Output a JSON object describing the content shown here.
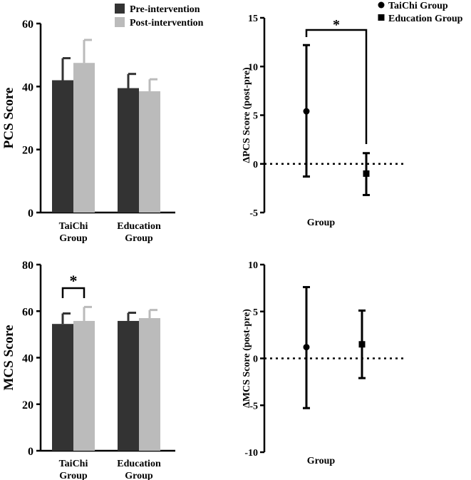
{
  "chart_data": [
    {
      "id": "pcs_bar",
      "type": "bar",
      "ylabel": "PCS Score",
      "ylim": [
        0,
        60
      ],
      "yticks": [
        "0",
        "20",
        "40",
        "60"
      ],
      "categories": [
        {
          "line1": "TaiChi",
          "line2": "Group"
        },
        {
          "line1": "Education",
          "line2": "Group"
        }
      ],
      "series": [
        {
          "name": "Pre-intervention",
          "color": "#333333",
          "values": [
            42,
            39.5
          ],
          "error": [
            7,
            4.5
          ]
        },
        {
          "name": "Post-intervention",
          "color": "#bbbbbb",
          "values": [
            47.5,
            38.5
          ],
          "error": [
            7.3,
            3.8
          ]
        }
      ],
      "significance": []
    },
    {
      "id": "pcs_delta",
      "type": "scatter",
      "ylabel": "ΔPCS Score (post-pre)",
      "xlabel": "Group",
      "ylim": [
        -5,
        15
      ],
      "yticks": [
        "-5",
        "0",
        "5",
        "10",
        "15"
      ],
      "points": [
        {
          "group": "TaiChi Group",
          "marker": "circle",
          "mean": 5.4,
          "low": -1.3,
          "high": 12.2
        },
        {
          "group": "Education Group",
          "marker": "square",
          "mean": -1.0,
          "low": -3.2,
          "high": 1.1
        }
      ],
      "reference_line": 0,
      "significance": [
        {
          "label": "*"
        }
      ]
    },
    {
      "id": "mcs_bar",
      "type": "bar",
      "ylabel": "MCS Score",
      "ylim": [
        0,
        80
      ],
      "yticks": [
        "0",
        "20",
        "40",
        "60",
        "80"
      ],
      "categories": [
        {
          "line1": "TaiChi",
          "line2": "Group"
        },
        {
          "line1": "Education",
          "line2": "Group"
        }
      ],
      "series": [
        {
          "name": "Pre-intervention",
          "color": "#333333",
          "values": [
            54.5,
            55.8
          ],
          "error": [
            4.5,
            3.5
          ]
        },
        {
          "name": "Post-intervention",
          "color": "#bbbbbb",
          "values": [
            55.8,
            57
          ],
          "error": [
            6,
            3.5
          ]
        }
      ],
      "significance": [
        {
          "label": "*"
        }
      ]
    },
    {
      "id": "mcs_delta",
      "type": "scatter",
      "ylabel": "ΔMCS Score (post-pre)",
      "xlabel": "Group",
      "ylim": [
        -10,
        10
      ],
      "yticks": [
        "-10",
        "-5",
        "0",
        "5",
        "10"
      ],
      "points": [
        {
          "group": "TaiChi Group",
          "marker": "circle",
          "mean": 1.2,
          "low": -5.3,
          "high": 7.6
        },
        {
          "group": "Education Group",
          "marker": "square",
          "mean": 1.5,
          "low": -2.1,
          "high": 5.1
        }
      ],
      "reference_line": 0,
      "significance": []
    }
  ],
  "legend_bar": [
    "Pre-intervention",
    "Post-intervention"
  ],
  "legend_group": [
    "TaiChi Group",
    "Education Group"
  ]
}
